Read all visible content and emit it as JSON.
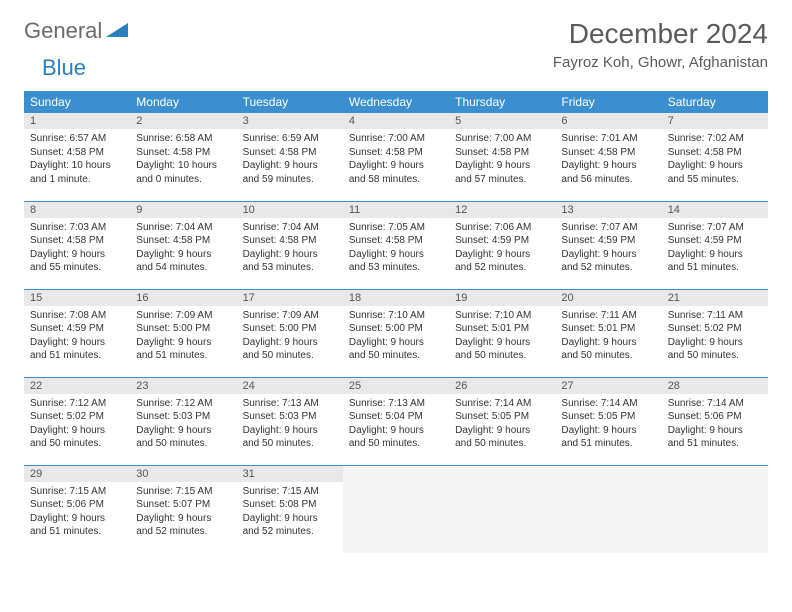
{
  "logo": {
    "text1": "General",
    "text2": "Blue"
  },
  "title": "December 2024",
  "location": "Fayroz Koh, Ghowr, Afghanistan",
  "colors": {
    "header_blue": "#3b8fcf",
    "logo_blue": "#2a7fbf",
    "logo_gray": "#6b6b6b",
    "daynum_bg": "#e8e8e8",
    "border": "#3b8fcf"
  },
  "dayNames": [
    "Sunday",
    "Monday",
    "Tuesday",
    "Wednesday",
    "Thursday",
    "Friday",
    "Saturday"
  ],
  "weeks": [
    [
      {
        "n": "1",
        "sr": "Sunrise: 6:57 AM",
        "ss": "Sunset: 4:58 PM",
        "dl": "Daylight: 10 hours and 1 minute."
      },
      {
        "n": "2",
        "sr": "Sunrise: 6:58 AM",
        "ss": "Sunset: 4:58 PM",
        "dl": "Daylight: 10 hours and 0 minutes."
      },
      {
        "n": "3",
        "sr": "Sunrise: 6:59 AM",
        "ss": "Sunset: 4:58 PM",
        "dl": "Daylight: 9 hours and 59 minutes."
      },
      {
        "n": "4",
        "sr": "Sunrise: 7:00 AM",
        "ss": "Sunset: 4:58 PM",
        "dl": "Daylight: 9 hours and 58 minutes."
      },
      {
        "n": "5",
        "sr": "Sunrise: 7:00 AM",
        "ss": "Sunset: 4:58 PM",
        "dl": "Daylight: 9 hours and 57 minutes."
      },
      {
        "n": "6",
        "sr": "Sunrise: 7:01 AM",
        "ss": "Sunset: 4:58 PM",
        "dl": "Daylight: 9 hours and 56 minutes."
      },
      {
        "n": "7",
        "sr": "Sunrise: 7:02 AM",
        "ss": "Sunset: 4:58 PM",
        "dl": "Daylight: 9 hours and 55 minutes."
      }
    ],
    [
      {
        "n": "8",
        "sr": "Sunrise: 7:03 AM",
        "ss": "Sunset: 4:58 PM",
        "dl": "Daylight: 9 hours and 55 minutes."
      },
      {
        "n": "9",
        "sr": "Sunrise: 7:04 AM",
        "ss": "Sunset: 4:58 PM",
        "dl": "Daylight: 9 hours and 54 minutes."
      },
      {
        "n": "10",
        "sr": "Sunrise: 7:04 AM",
        "ss": "Sunset: 4:58 PM",
        "dl": "Daylight: 9 hours and 53 minutes."
      },
      {
        "n": "11",
        "sr": "Sunrise: 7:05 AM",
        "ss": "Sunset: 4:58 PM",
        "dl": "Daylight: 9 hours and 53 minutes."
      },
      {
        "n": "12",
        "sr": "Sunrise: 7:06 AM",
        "ss": "Sunset: 4:59 PM",
        "dl": "Daylight: 9 hours and 52 minutes."
      },
      {
        "n": "13",
        "sr": "Sunrise: 7:07 AM",
        "ss": "Sunset: 4:59 PM",
        "dl": "Daylight: 9 hours and 52 minutes."
      },
      {
        "n": "14",
        "sr": "Sunrise: 7:07 AM",
        "ss": "Sunset: 4:59 PM",
        "dl": "Daylight: 9 hours and 51 minutes."
      }
    ],
    [
      {
        "n": "15",
        "sr": "Sunrise: 7:08 AM",
        "ss": "Sunset: 4:59 PM",
        "dl": "Daylight: 9 hours and 51 minutes."
      },
      {
        "n": "16",
        "sr": "Sunrise: 7:09 AM",
        "ss": "Sunset: 5:00 PM",
        "dl": "Daylight: 9 hours and 51 minutes."
      },
      {
        "n": "17",
        "sr": "Sunrise: 7:09 AM",
        "ss": "Sunset: 5:00 PM",
        "dl": "Daylight: 9 hours and 50 minutes."
      },
      {
        "n": "18",
        "sr": "Sunrise: 7:10 AM",
        "ss": "Sunset: 5:00 PM",
        "dl": "Daylight: 9 hours and 50 minutes."
      },
      {
        "n": "19",
        "sr": "Sunrise: 7:10 AM",
        "ss": "Sunset: 5:01 PM",
        "dl": "Daylight: 9 hours and 50 minutes."
      },
      {
        "n": "20",
        "sr": "Sunrise: 7:11 AM",
        "ss": "Sunset: 5:01 PM",
        "dl": "Daylight: 9 hours and 50 minutes."
      },
      {
        "n": "21",
        "sr": "Sunrise: 7:11 AM",
        "ss": "Sunset: 5:02 PM",
        "dl": "Daylight: 9 hours and 50 minutes."
      }
    ],
    [
      {
        "n": "22",
        "sr": "Sunrise: 7:12 AM",
        "ss": "Sunset: 5:02 PM",
        "dl": "Daylight: 9 hours and 50 minutes."
      },
      {
        "n": "23",
        "sr": "Sunrise: 7:12 AM",
        "ss": "Sunset: 5:03 PM",
        "dl": "Daylight: 9 hours and 50 minutes."
      },
      {
        "n": "24",
        "sr": "Sunrise: 7:13 AM",
        "ss": "Sunset: 5:03 PM",
        "dl": "Daylight: 9 hours and 50 minutes."
      },
      {
        "n": "25",
        "sr": "Sunrise: 7:13 AM",
        "ss": "Sunset: 5:04 PM",
        "dl": "Daylight: 9 hours and 50 minutes."
      },
      {
        "n": "26",
        "sr": "Sunrise: 7:14 AM",
        "ss": "Sunset: 5:05 PM",
        "dl": "Daylight: 9 hours and 50 minutes."
      },
      {
        "n": "27",
        "sr": "Sunrise: 7:14 AM",
        "ss": "Sunset: 5:05 PM",
        "dl": "Daylight: 9 hours and 51 minutes."
      },
      {
        "n": "28",
        "sr": "Sunrise: 7:14 AM",
        "ss": "Sunset: 5:06 PM",
        "dl": "Daylight: 9 hours and 51 minutes."
      }
    ],
    [
      {
        "n": "29",
        "sr": "Sunrise: 7:15 AM",
        "ss": "Sunset: 5:06 PM",
        "dl": "Daylight: 9 hours and 51 minutes."
      },
      {
        "n": "30",
        "sr": "Sunrise: 7:15 AM",
        "ss": "Sunset: 5:07 PM",
        "dl": "Daylight: 9 hours and 52 minutes."
      },
      {
        "n": "31",
        "sr": "Sunrise: 7:15 AM",
        "ss": "Sunset: 5:08 PM",
        "dl": "Daylight: 9 hours and 52 minutes."
      },
      null,
      null,
      null,
      null
    ]
  ]
}
